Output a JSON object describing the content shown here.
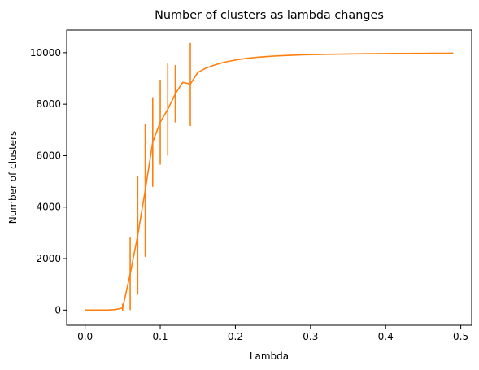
{
  "chart_data": {
    "type": "line",
    "title": "Number of clusters as lambda changes",
    "xlabel": "Lambda",
    "ylabel": "Number of clusters",
    "xlim": [
      -0.0245,
      0.5145
    ],
    "ylim": [
      -590,
      10880
    ],
    "xticks": [
      0.0,
      0.1,
      0.2,
      0.3,
      0.4,
      0.5
    ],
    "xtick_labels": [
      "0.0",
      "0.1",
      "0.2",
      "0.3",
      "0.4",
      "0.5"
    ],
    "yticks": [
      0,
      2000,
      4000,
      6000,
      8000,
      10000
    ],
    "ytick_labels": [
      "0",
      "2000",
      "4000",
      "6000",
      "8000",
      "10000"
    ],
    "grid": false,
    "legend": "none",
    "series": [
      {
        "color": "#ff7f0e",
        "x": [
          0.0,
          0.01,
          0.02,
          0.03,
          0.04,
          0.05,
          0.06,
          0.07,
          0.08,
          0.09,
          0.1,
          0.11,
          0.12,
          0.13,
          0.14,
          0.15,
          0.16,
          0.17,
          0.18,
          0.19,
          0.2,
          0.21,
          0.22,
          0.23,
          0.24,
          0.25,
          0.26,
          0.27,
          0.28,
          0.29,
          0.3,
          0.31,
          0.32,
          0.33,
          0.34,
          0.35,
          0.36,
          0.37,
          0.38,
          0.39,
          0.4,
          0.41,
          0.42,
          0.43,
          0.44,
          0.45,
          0.46,
          0.47,
          0.48,
          0.49
        ],
        "y": [
          0,
          0,
          0,
          0,
          20,
          80,
          1400,
          2900,
          4650,
          6530,
          7300,
          7800,
          8400,
          8850,
          8780,
          9230,
          9390,
          9500,
          9590,
          9660,
          9715,
          9760,
          9795,
          9825,
          9848,
          9867,
          9883,
          9896,
          9907,
          9916,
          9924,
          9931,
          9937,
          9942,
          9947,
          9951,
          9955,
          9958,
          9961,
          9964,
          9966,
          9968,
          9970,
          9972,
          9974,
          9975,
          9977,
          9978,
          9979,
          9980
        ],
        "error_bars": [
          {
            "x": 0.05,
            "low": -30,
            "high": 250
          },
          {
            "x": 0.06,
            "low": 0,
            "high": 2820
          },
          {
            "x": 0.07,
            "low": 600,
            "high": 5200
          },
          {
            "x": 0.08,
            "low": 2070,
            "high": 7220
          },
          {
            "x": 0.09,
            "low": 4790,
            "high": 8270
          },
          {
            "x": 0.1,
            "low": 5650,
            "high": 8950
          },
          {
            "x": 0.11,
            "low": 6000,
            "high": 9580
          },
          {
            "x": 0.12,
            "low": 7290,
            "high": 9520
          },
          {
            "x": 0.14,
            "low": 7150,
            "high": 10380
          }
        ]
      }
    ]
  }
}
